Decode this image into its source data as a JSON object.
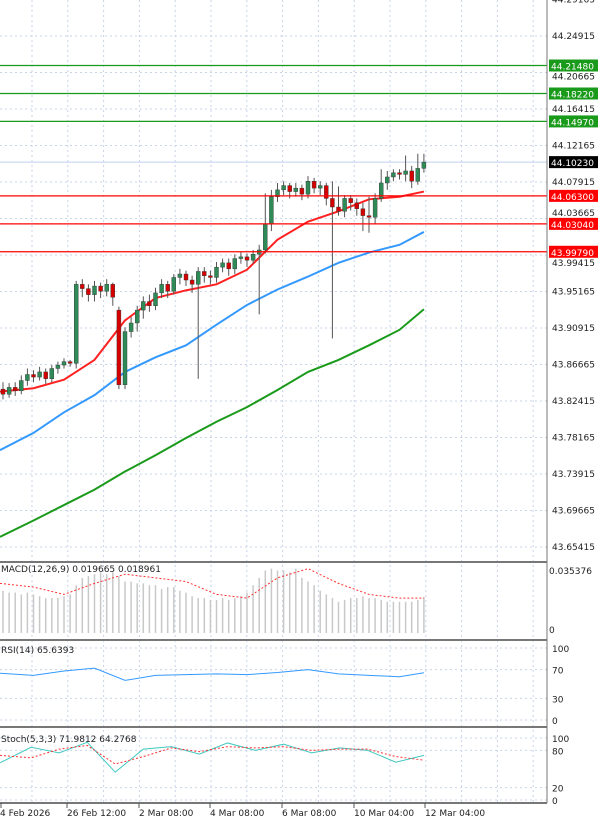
{
  "chart_data": {
    "type": "candlestick",
    "main": {
      "y_ticks": [
        "44.29165",
        "44.24915",
        "44.20665",
        "44.16415",
        "44.12165",
        "44.07915",
        "44.03665",
        "43.99415",
        "43.95165",
        "43.90915",
        "43.86665",
        "43.82415",
        "43.78165",
        "43.73915",
        "43.69665",
        "43.65415"
      ],
      "ylim": [
        43.637,
        44.291
      ],
      "grid": true,
      "ohlc": [
        [
          43.838,
          43.846,
          43.826,
          43.832
        ],
        [
          43.832,
          43.845,
          43.828,
          43.84
        ],
        [
          43.84,
          43.846,
          43.83,
          43.836
        ],
        [
          43.836,
          43.854,
          43.832,
          43.848
        ],
        [
          43.848,
          43.862,
          43.842,
          43.855
        ],
        [
          43.855,
          43.86,
          43.846,
          43.852
        ],
        [
          43.852,
          43.864,
          43.848,
          43.858
        ],
        [
          43.858,
          43.862,
          43.844,
          43.85
        ],
        [
          43.85,
          43.866,
          43.846,
          43.862
        ],
        [
          43.862,
          43.87,
          43.856,
          43.866
        ],
        [
          43.866,
          43.874,
          43.862,
          43.87
        ],
        [
          43.87,
          43.872,
          43.864,
          43.868
        ],
        [
          43.868,
          43.964,
          43.862,
          43.96
        ],
        [
          43.96,
          43.966,
          43.945,
          43.955
        ],
        [
          43.955,
          43.96,
          43.94,
          43.948
        ],
        [
          43.948,
          43.964,
          43.94,
          43.958
        ],
        [
          43.958,
          43.962,
          43.944,
          43.952
        ],
        [
          43.952,
          43.966,
          43.946,
          43.96
        ],
        [
          43.96,
          43.962,
          43.935,
          43.945
        ],
        [
          43.93,
          43.934,
          43.838,
          43.843
        ],
        [
          43.843,
          43.91,
          43.838,
          43.905
        ],
        [
          43.905,
          43.922,
          43.898,
          43.915
        ],
        [
          43.915,
          43.935,
          43.905,
          43.93
        ],
        [
          43.93,
          43.946,
          43.92,
          43.94
        ],
        [
          43.94,
          43.948,
          43.928,
          43.935
        ],
        [
          43.935,
          43.956,
          43.93,
          43.95
        ],
        [
          43.95,
          43.966,
          43.944,
          43.96
        ],
        [
          43.96,
          43.964,
          43.944,
          43.952
        ],
        [
          43.952,
          43.972,
          43.948,
          43.968
        ],
        [
          43.968,
          43.978,
          43.96,
          43.972
        ],
        [
          43.972,
          43.976,
          43.958,
          43.965
        ],
        [
          43.965,
          43.97,
          43.95,
          43.96
        ],
        [
          43.96,
          43.98,
          43.85,
          43.975
        ],
        [
          43.975,
          43.98,
          43.962,
          43.97
        ],
        [
          43.97,
          43.976,
          43.96,
          43.968
        ],
        [
          43.968,
          43.986,
          43.962,
          43.98
        ],
        [
          43.98,
          43.99,
          43.974,
          43.985
        ],
        [
          43.985,
          43.99,
          43.97,
          43.978
        ],
        [
          43.978,
          43.995,
          43.972,
          43.99
        ],
        [
          43.99,
          43.998,
          43.984,
          43.992
        ],
        [
          43.992,
          43.996,
          43.98,
          43.988
        ],
        [
          43.988,
          44.0,
          43.984,
          43.995
        ],
        [
          43.995,
          44.006,
          43.925,
          44.0
        ],
        [
          44.0,
          44.066,
          43.996,
          44.03
        ],
        [
          44.03,
          44.07,
          44.022,
          44.062
        ],
        [
          44.062,
          44.078,
          44.056,
          44.07
        ],
        [
          44.07,
          44.08,
          44.064,
          44.075
        ],
        [
          44.075,
          44.078,
          44.06,
          44.068
        ],
        [
          44.068,
          44.078,
          44.062,
          44.072
        ],
        [
          44.072,
          44.076,
          44.058,
          44.065
        ],
        [
          44.065,
          44.086,
          44.06,
          44.08
        ],
        [
          44.08,
          44.084,
          44.066,
          44.072
        ],
        [
          44.072,
          44.08,
          44.064,
          44.075
        ],
        [
          44.075,
          44.078,
          44.052,
          44.06
        ],
        [
          44.06,
          44.08,
          43.897,
          44.05
        ],
        [
          44.05,
          44.074,
          44.04,
          44.045
        ],
        [
          44.045,
          44.064,
          44.038,
          44.06
        ],
        [
          44.06,
          44.064,
          44.046,
          44.055
        ],
        [
          44.055,
          44.06,
          44.04,
          44.048
        ],
        [
          44.048,
          44.055,
          44.022,
          44.04
        ],
        [
          44.04,
          44.062,
          44.02,
          44.038
        ],
        [
          44.038,
          44.066,
          44.03,
          44.06
        ],
        [
          44.06,
          44.094,
          44.056,
          44.078
        ],
        [
          44.078,
          44.092,
          44.07,
          44.085
        ],
        [
          44.085,
          44.094,
          44.08,
          44.09
        ],
        [
          44.09,
          44.094,
          44.082,
          44.088
        ],
        [
          44.088,
          44.11,
          44.08,
          44.092
        ],
        [
          44.092,
          44.098,
          44.072,
          44.08
        ],
        [
          44.08,
          44.112,
          44.076,
          44.095
        ],
        [
          44.095,
          44.112,
          44.09,
          44.1023
        ]
      ],
      "ma_sample_every": 5,
      "moving_averages": [
        {
          "color": "#ff2020",
          "values": [
            43.835,
            43.839,
            43.849,
            43.872,
            43.918,
            43.944,
            43.953,
            43.96,
            43.977,
            44.012,
            44.033,
            44.045,
            44.059,
            44.062,
            44.068
          ]
        },
        {
          "color": "#3399ff",
          "values": [
            43.767,
            43.787,
            43.811,
            43.831,
            43.858,
            43.875,
            43.889,
            43.913,
            43.936,
            43.954,
            43.969,
            43.985,
            43.997,
            44.006,
            44.021
          ]
        },
        {
          "color": "#1a9a1a",
          "values": [
            43.666,
            43.685,
            43.703,
            43.721,
            43.742,
            43.761,
            43.781,
            43.8,
            43.817,
            43.837,
            43.858,
            43.872,
            43.889,
            43.907,
            43.931
          ]
        }
      ],
      "levels": [
        {
          "value": "44.21480",
          "color": "#1a9a1a"
        },
        {
          "value": "44.18220",
          "color": "#1a9a1a"
        },
        {
          "value": "44.14970",
          "color": "#1a9a1a"
        },
        {
          "value": "44.06300",
          "color": "#ff0000"
        },
        {
          "value": "44.03040",
          "color": "#ff0000"
        },
        {
          "value": "43.99790",
          "color": "#ff0000"
        }
      ],
      "current_price": {
        "value": "44.10230",
        "color": "#000000"
      },
      "bull_color": "#2e8b57",
      "bear_color": "#d40000"
    },
    "macd": {
      "label": "MACD(12,26,9) 0.019665 0.018961",
      "y_ticks": [
        "0.035376",
        "0"
      ],
      "ylim": [
        0,
        0.035376
      ],
      "histogram": [
        0.023,
        0.022,
        0.022,
        0.021,
        0.022,
        0.021,
        0.02,
        0.019,
        0.019,
        0.019,
        0.02,
        0.021,
        0.026,
        0.03,
        0.031,
        0.032,
        0.033,
        0.032,
        0.033,
        0.031,
        0.028,
        0.028,
        0.027,
        0.027,
        0.026,
        0.026,
        0.024,
        0.025,
        0.025,
        0.023,
        0.022,
        0.02,
        0.019,
        0.019,
        0.018,
        0.018,
        0.019,
        0.018,
        0.019,
        0.02,
        0.022,
        0.026,
        0.03,
        0.034,
        0.035,
        0.034,
        0.034,
        0.033,
        0.035,
        0.03,
        0.028,
        0.026,
        0.023,
        0.021,
        0.019,
        0.017,
        0.018,
        0.019,
        0.019,
        0.02,
        0.019,
        0.019,
        0.018,
        0.017,
        0.017,
        0.017,
        0.017,
        0.017,
        0.018,
        0.019665
      ],
      "signal": [
        0.027,
        0.025,
        0.021,
        0.027,
        0.032,
        0.03,
        0.028,
        0.021,
        0.019,
        0.03,
        0.035,
        0.027,
        0.021,
        0.019,
        0.018961
      ],
      "hist_color": "#c8c8c8",
      "signal_color": "#ff3030"
    },
    "rsi": {
      "label": "RSI(14) 65.6393",
      "y_ticks": [
        "100",
        "70",
        "30",
        "0"
      ],
      "ylim": [
        0,
        100
      ],
      "values": [
        65,
        62,
        68,
        72,
        55,
        62,
        63,
        64,
        63,
        66,
        70,
        64,
        62,
        60,
        65.6393
      ],
      "color": "#3399ff"
    },
    "stoch": {
      "label": "Stoch(5,3,3) 71.9812 64.2768",
      "y_ticks": [
        "100",
        "80",
        "20",
        "0"
      ],
      "ylim": [
        0,
        100
      ],
      "main": [
        60,
        85,
        76,
        93,
        45,
        82,
        86,
        74,
        92,
        80,
        90,
        76,
        84,
        80,
        61,
        71.9812
      ],
      "signal": [
        72,
        68,
        82,
        88,
        58,
        70,
        84,
        78,
        86,
        84,
        86,
        80,
        82,
        82,
        70,
        64.2768
      ],
      "main_color": "#40c8c0",
      "signal_color": "#ff3030"
    },
    "x_ticks": [
      "4 Feb 2026",
      "26 Feb 12:00",
      "2 Mar 08:00",
      "4 Mar 08:00",
      "6 Mar 08:00",
      "10 Mar 04:00",
      "12 Mar 04:00"
    ]
  }
}
